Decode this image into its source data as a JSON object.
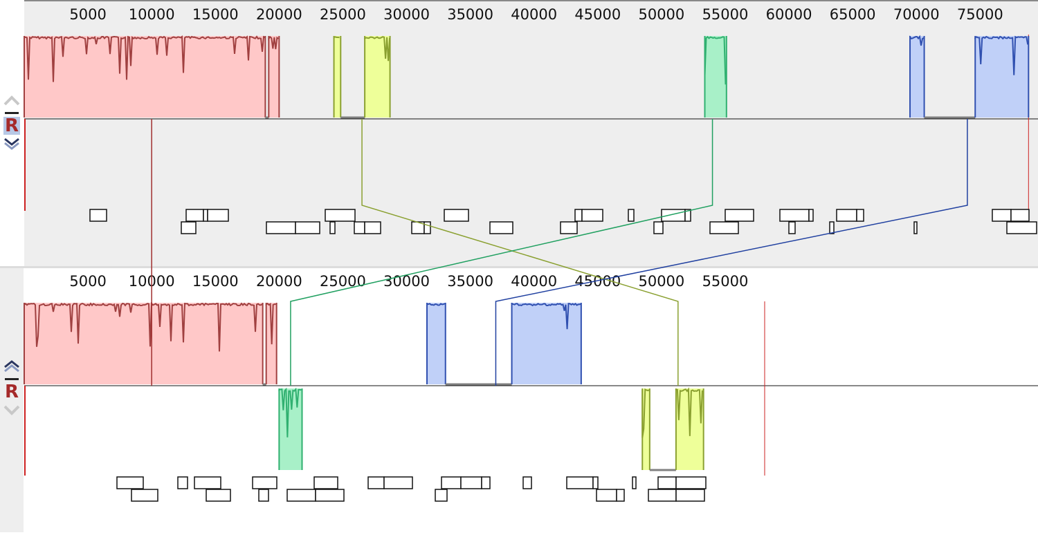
{
  "app": {
    "genome_panels": [
      {
        "id": "genome-1",
        "selected": true,
        "reference_label": "R",
        "controls": {
          "up_icon": "chevron-up-icon",
          "minimize_icon": "minus-icon",
          "down_icon": "double-chevron-down-icon"
        },
        "ruler_max": 79000,
        "ticks": [
          "5000",
          "10000",
          "15000",
          "20000",
          "25000",
          "30000",
          "35000",
          "40000",
          "45000",
          "50000",
          "55000",
          "60000",
          "65000",
          "70000",
          "75000"
        ],
        "tick_values": [
          5000,
          10000,
          15000,
          20000,
          25000,
          30000,
          35000,
          40000,
          45000,
          50000,
          55000,
          60000,
          65000,
          70000,
          75000
        ],
        "blocks": [
          {
            "color": "#a04040",
            "fill": "#ffc8c8",
            "start": 0,
            "end": 20000,
            "strand": "+"
          },
          {
            "color": "#8aa030",
            "fill": "#eeff99",
            "start": 24300,
            "end": 28700,
            "strand": "+"
          },
          {
            "color": "#30b070",
            "fill": "#a8f0c8",
            "start": 53400,
            "end": 55100,
            "strand": "+"
          },
          {
            "color": "#3050b0",
            "fill": "#c0d0f8",
            "start": 69500,
            "end": 78800,
            "strand": "+"
          }
        ]
      },
      {
        "id": "genome-2",
        "selected": false,
        "reference_label": "R",
        "controls": {
          "up_icon": "double-chevron-up-icon",
          "minimize_icon": "minus-icon",
          "down_icon": "chevron-down-icon"
        },
        "ruler_max": 58000,
        "ticks": [
          "5000",
          "10000",
          "15000",
          "20000",
          "25000",
          "30000",
          "35000",
          "40000",
          "45000",
          "50000",
          "55000"
        ],
        "tick_values": [
          5000,
          10000,
          15000,
          20000,
          25000,
          30000,
          35000,
          40000,
          45000,
          50000,
          55000
        ],
        "blocks": [
          {
            "color": "#a04040",
            "fill": "#ffc8c8",
            "start": 0,
            "end": 19800,
            "strand": "+"
          },
          {
            "color": "#30b070",
            "fill": "#a8f0c8",
            "start": 20000,
            "end": 21800,
            "strand": "-"
          },
          {
            "color": "#3050b0",
            "fill": "#c0d0f8",
            "start": 31600,
            "end": 43700,
            "strand": "+"
          },
          {
            "color": "#8aa030",
            "fill": "#eeff99",
            "start": 48500,
            "end": 53300,
            "strand": "-"
          }
        ]
      }
    ],
    "connectors": [
      {
        "color": "#a03030",
        "from": 10000,
        "to": 10000
      },
      {
        "color": "#8aa030",
        "from": 26500,
        "to": 51300
      },
      {
        "color": "#20a060",
        "from": 54000,
        "to": 20900
      },
      {
        "color": "#2040a0",
        "from": 74000,
        "to": 37000
      }
    ]
  }
}
